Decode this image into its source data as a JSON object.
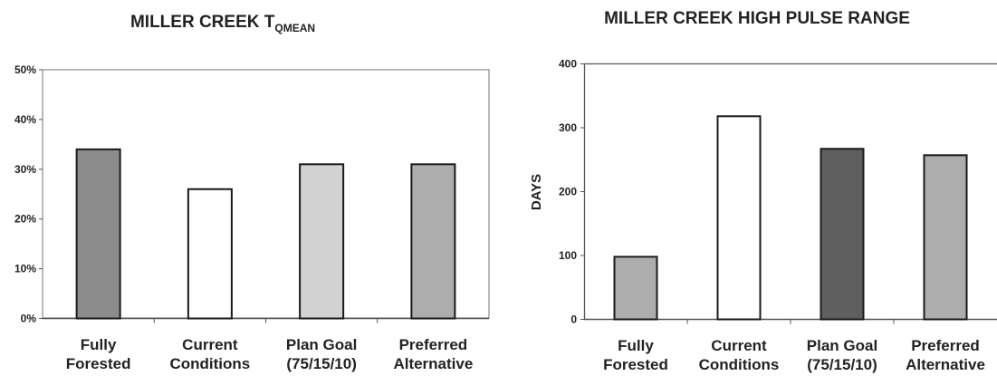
{
  "chart_data": [
    {
      "type": "bar",
      "title": "MILLER CREEK T",
      "title_subscript": "QMEAN",
      "ylabel": "",
      "xlabel": "",
      "ylim": [
        0,
        50
      ],
      "y_unit": "%",
      "yticks": [
        "0%",
        "10%",
        "20%",
        "30%",
        "40%",
        "50%"
      ],
      "categories": [
        [
          "Fully",
          "Forested"
        ],
        [
          "Current",
          "Conditions"
        ],
        [
          "Plan Goal",
          "(75/15/10)"
        ],
        [
          "Preferred",
          "Alternative"
        ]
      ],
      "values": [
        34,
        26,
        31,
        31
      ],
      "bar_colors": [
        "#8c8c8c",
        "#ffffff",
        "#d2d2d2",
        "#adadad"
      ],
      "grid": false
    },
    {
      "type": "bar",
      "title": "MILLER CREEK HIGH PULSE RANGE",
      "ylabel": "DAYS",
      "xlabel": "",
      "ylim": [
        0,
        400
      ],
      "yticks": [
        "0",
        "100",
        "200",
        "300",
        "400"
      ],
      "categories": [
        [
          "Fully",
          "Forested"
        ],
        [
          "Current",
          "Conditions"
        ],
        [
          "Plan Goal",
          "(75/15/10)"
        ],
        [
          "Preferred",
          "Alternative"
        ]
      ],
      "values": [
        98,
        318,
        267,
        257
      ],
      "bar_colors": [
        "#adadad",
        "#ffffff",
        "#5f5f5f",
        "#adadad"
      ],
      "grid": false
    }
  ]
}
